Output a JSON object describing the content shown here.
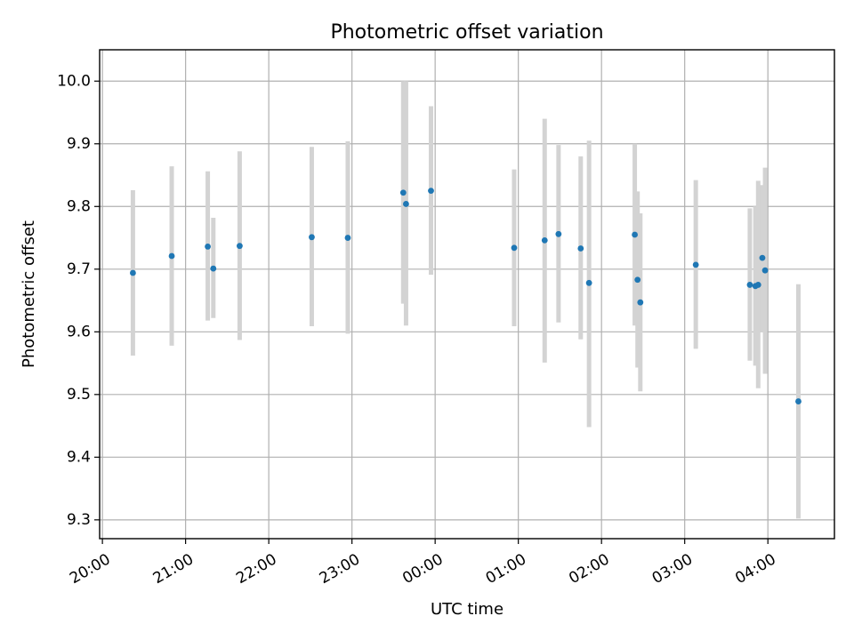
{
  "chart_data": {
    "type": "scatter",
    "title": "Photometric offset variation",
    "xlabel": "UTC time",
    "ylabel": "Photometric offset",
    "x_ticks": [
      "20:00",
      "21:00",
      "22:00",
      "23:00",
      "00:00",
      "01:00",
      "02:00",
      "03:00",
      "04:00"
    ],
    "y_ticks": [
      "9.3",
      "9.4",
      "9.5",
      "9.6",
      "9.7",
      "9.8",
      "9.9",
      "10.0"
    ],
    "xlim": [
      "19:58",
      "04:48"
    ],
    "ylim": [
      9.27,
      10.05
    ],
    "grid": true,
    "error_bar_color": "#d3d3d3",
    "marker_color": "#1f77b4",
    "points": [
      {
        "x": "20:22",
        "y": 9.694,
        "ylow": 9.562,
        "yhigh": 9.826
      },
      {
        "x": "20:50",
        "y": 9.721,
        "ylow": 9.578,
        "yhigh": 9.864
      },
      {
        "x": "21:16",
        "y": 9.736,
        "ylow": 9.618,
        "yhigh": 9.856
      },
      {
        "x": "21:20",
        "y": 9.701,
        "ylow": 9.622,
        "yhigh": 9.782
      },
      {
        "x": "21:39",
        "y": 9.737,
        "ylow": 9.587,
        "yhigh": 9.888
      },
      {
        "x": "22:31",
        "y": 9.751,
        "ylow": 9.609,
        "yhigh": 9.895
      },
      {
        "x": "22:57",
        "y": 9.75,
        "ylow": 9.597,
        "yhigh": 9.904
      },
      {
        "x": "23:37",
        "y": 9.822,
        "ylow": 9.645,
        "yhigh": 10.0
      },
      {
        "x": "23:39",
        "y": 9.804,
        "ylow": 9.61,
        "yhigh": 10.0
      },
      {
        "x": "23:57",
        "y": 9.825,
        "ylow": 9.691,
        "yhigh": 9.96
      },
      {
        "x": "00:57",
        "y": 9.734,
        "ylow": 9.609,
        "yhigh": 9.859
      },
      {
        "x": "01:19",
        "y": 9.746,
        "ylow": 9.551,
        "yhigh": 9.94
      },
      {
        "x": "01:29",
        "y": 9.756,
        "ylow": 9.615,
        "yhigh": 9.898
      },
      {
        "x": "01:45",
        "y": 9.733,
        "ylow": 9.588,
        "yhigh": 9.88
      },
      {
        "x": "01:51",
        "y": 9.678,
        "ylow": 9.448,
        "yhigh": 9.905
      },
      {
        "x": "02:24",
        "y": 9.755,
        "ylow": 9.61,
        "yhigh": 9.9
      },
      {
        "x": "02:26",
        "y": 9.683,
        "ylow": 9.543,
        "yhigh": 9.824
      },
      {
        "x": "02:28",
        "y": 9.647,
        "ylow": 9.505,
        "yhigh": 9.789
      },
      {
        "x": "03:08",
        "y": 9.707,
        "ylow": 9.573,
        "yhigh": 9.842
      },
      {
        "x": "03:47",
        "y": 9.675,
        "ylow": 9.554,
        "yhigh": 9.797
      },
      {
        "x": "03:51",
        "y": 9.673,
        "ylow": 9.546,
        "yhigh": 9.8
      },
      {
        "x": "03:53",
        "y": 9.675,
        "ylow": 9.51,
        "yhigh": 9.841
      },
      {
        "x": "03:56",
        "y": 9.718,
        "ylow": 9.599,
        "yhigh": 9.834
      },
      {
        "x": "03:58",
        "y": 9.698,
        "ylow": 9.533,
        "yhigh": 9.862
      },
      {
        "x": "04:22",
        "y": 9.489,
        "ylow": 9.302,
        "yhigh": 9.676
      }
    ]
  }
}
